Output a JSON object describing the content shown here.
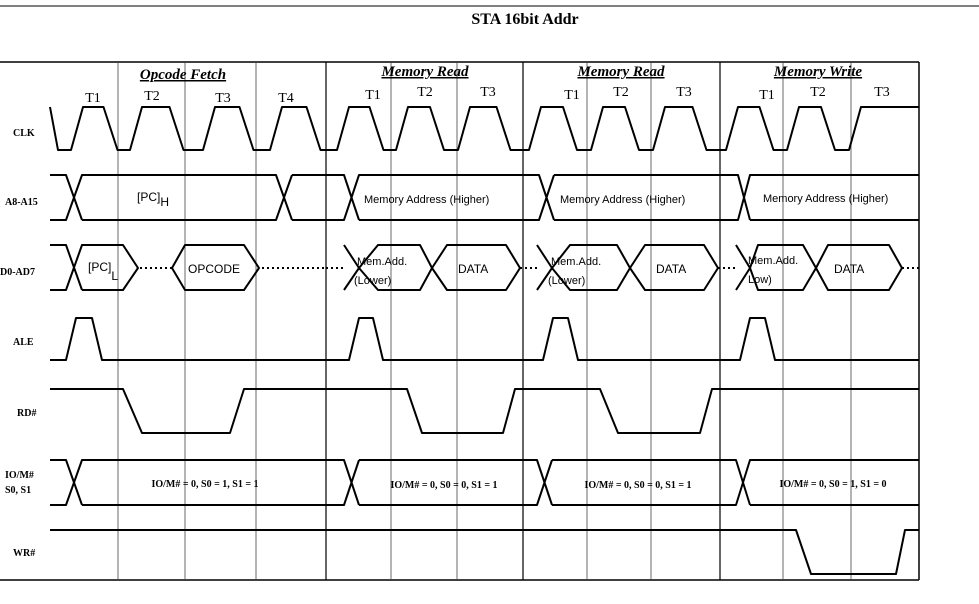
{
  "title": "STA 16bit Addr",
  "cycles": [
    {
      "name": "Opcode Fetch",
      "states": [
        "T1",
        "T2",
        "T3",
        "T4"
      ]
    },
    {
      "name": "Memory Read",
      "states": [
        "T1",
        "T2",
        "T3"
      ]
    },
    {
      "name": "Memory Read",
      "states": [
        "T1",
        "T2",
        "T3"
      ]
    },
    {
      "name": "Memory Write",
      "states": [
        "T1",
        "T2",
        "T3"
      ]
    }
  ],
  "signals": [
    "CLK",
    "A8-A15",
    "D0-AD7",
    "ALE",
    "RD#",
    "IO/M#",
    "S0, S1",
    "WR#"
  ],
  "bus_labels": {
    "a_high": [
      "[PC]",
      "Memory Address (Higher)",
      "Memory Address (Higher)",
      "Memory Address (Higher)"
    ],
    "a_high_sub": "H",
    "ad_fetch_low": "[PC]",
    "ad_fetch_low_sub": "L",
    "ad_opcode": "OPCODE",
    "ad_read1_addr": [
      "Mem.Add.",
      "(Lower)"
    ],
    "ad_read2_addr": [
      "Mem.Add.",
      "(Lower)"
    ],
    "ad_write_addr": [
      "Mem.Add.",
      "Low)"
    ],
    "ad_data": [
      "DATA",
      "DATA",
      "DATA"
    ],
    "status": [
      "IO/M# = 0, S0 = 1, S1 = 1",
      "IO/M# = 0, S0 = 0, S1 = 1",
      "IO/M# = 0, S0 = 0, S1 = 1",
      "IO/M# = 0, S0 = 1, S1 = 0"
    ]
  }
}
